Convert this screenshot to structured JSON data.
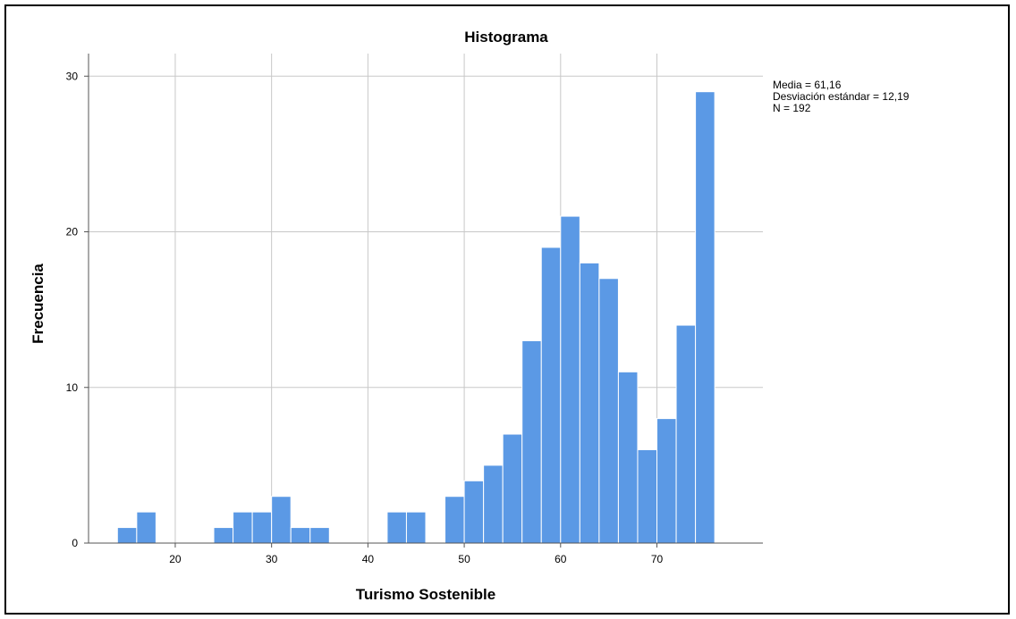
{
  "chart_data": {
    "type": "bar",
    "title": "Histograma",
    "xlabel": "Turismo Sostenible",
    "ylabel": "Frecuencia",
    "bin_width": 2,
    "x_ticks": [
      20,
      30,
      40,
      50,
      60,
      70
    ],
    "y_ticks": [
      0,
      10,
      20,
      30
    ],
    "xlim": [
      11,
      81
    ],
    "ylim": [
      0,
      30
    ],
    "grid": true,
    "bar_color": "#5b99e5",
    "bins": [
      {
        "start": 14,
        "count": 1
      },
      {
        "start": 16,
        "count": 2
      },
      {
        "start": 24,
        "count": 1
      },
      {
        "start": 26,
        "count": 2
      },
      {
        "start": 28,
        "count": 2
      },
      {
        "start": 30,
        "count": 3
      },
      {
        "start": 32,
        "count": 1
      },
      {
        "start": 34,
        "count": 1
      },
      {
        "start": 42,
        "count": 2
      },
      {
        "start": 44,
        "count": 2
      },
      {
        "start": 48,
        "count": 3
      },
      {
        "start": 50,
        "count": 4
      },
      {
        "start": 52,
        "count": 5
      },
      {
        "start": 54,
        "count": 7
      },
      {
        "start": 56,
        "count": 13
      },
      {
        "start": 58,
        "count": 19
      },
      {
        "start": 60,
        "count": 21
      },
      {
        "start": 62,
        "count": 18
      },
      {
        "start": 64,
        "count": 17
      },
      {
        "start": 66,
        "count": 11
      },
      {
        "start": 68,
        "count": 6
      },
      {
        "start": 70,
        "count": 8
      },
      {
        "start": 72,
        "count": 14
      },
      {
        "start": 74,
        "count": 29
      }
    ],
    "stats": {
      "mean_line": "Media = 61,16",
      "std_line": "Desviación estándar = 12,19",
      "n_line": "N = 192"
    }
  }
}
